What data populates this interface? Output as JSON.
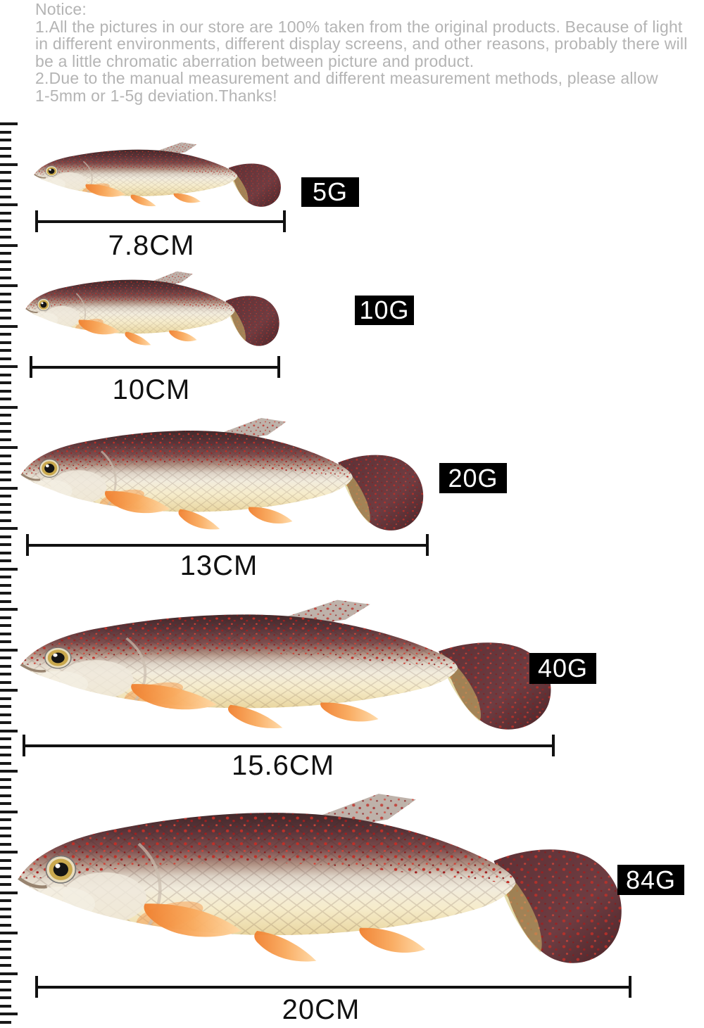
{
  "notice": {
    "title": "Notice:",
    "lines": [
      "1.All the pictures in our store are 100% taken from the original products. Because of light",
      "in different environments, different display screens, and other reasons, probably there will",
      "be a little chromatic aberration between picture and product.",
      "2.Due to the manual measurement and different measurement methods, please allow",
      "1-5mm or 1-5g deviation.Thanks!"
    ]
  },
  "items": [
    {
      "weight_label": "5G",
      "length_label": "7.8CM"
    },
    {
      "weight_label": "10G",
      "length_label": "10CM"
    },
    {
      "weight_label": "20G",
      "length_label": "13CM"
    },
    {
      "weight_label": "40G",
      "length_label": "15.6CM"
    },
    {
      "weight_label": "84G",
      "length_label": "20CM"
    }
  ],
  "colors": {
    "notice_text": "#b4b4b4",
    "badge_bg": "#000000",
    "badge_text": "#ffffff",
    "measure_line": "#111111",
    "fish_back": "#4a2e31",
    "fish_belly": "#ecd9a6",
    "fish_fins": "#f59a4c",
    "fish_tail": "#5d3136",
    "fish_eye_ring": "#caa94e"
  },
  "graphics": {
    "fish_image": "soft-plastic-fish-lure-photo",
    "ruler_image": "measurement-ruler-ticks"
  }
}
